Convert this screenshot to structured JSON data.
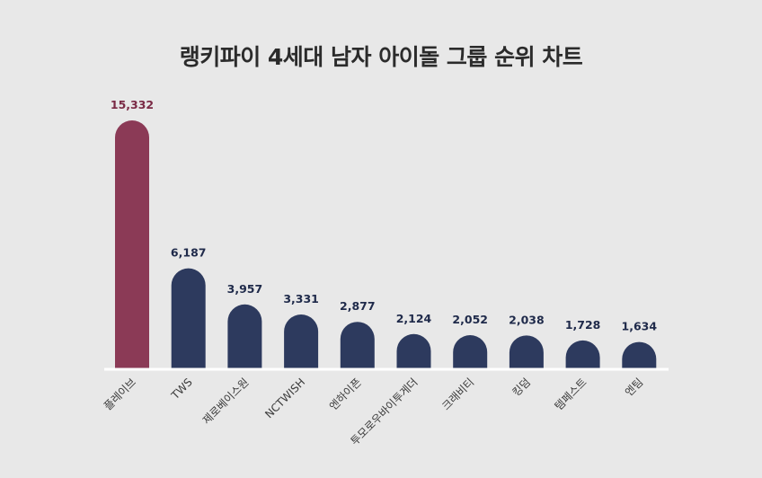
{
  "chart_data": {
    "type": "bar",
    "title": "랭키파이 4세대 남자 아이돌 그룹 순위 차트",
    "categories": [
      "플레이브",
      "TWS",
      "제로베이스원",
      "NCTWISH",
      "엔하이픈",
      "투모로우바이투게더",
      "크래비티",
      "킹덤",
      "템페스트",
      "엔팀"
    ],
    "values": [
      15332,
      6187,
      3957,
      3331,
      2877,
      2124,
      2052,
      2038,
      1728,
      1634
    ],
    "value_labels": [
      "15,332",
      "6,187",
      "3,957",
      "3,331",
      "2,877",
      "2,124",
      "2,052",
      "2,038",
      "1,728",
      "1,634"
    ],
    "xlabel": "",
    "ylabel": "",
    "ylim": [
      0,
      15332
    ],
    "grid": false,
    "colors": {
      "highlight": "#8b3a56",
      "highlight_label": "#7a2a45",
      "bar": "#2d3a5e",
      "bar_label": "#1f2a4a",
      "baseline": "#ffffff"
    }
  }
}
